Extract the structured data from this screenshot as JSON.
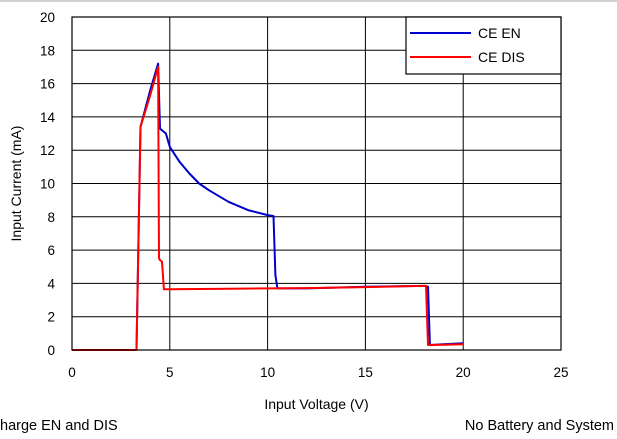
{
  "chart_data": {
    "type": "line",
    "xlabel": "Input Voltage (V)",
    "ylabel": "Input Current (mA)",
    "xlim": [
      0,
      25
    ],
    "ylim": [
      0,
      20
    ],
    "xticks": [
      0,
      5,
      10,
      15,
      20,
      25
    ],
    "yticks": [
      0,
      2,
      4,
      6,
      8,
      10,
      12,
      14,
      16,
      18,
      20
    ],
    "grid": true,
    "legend_position": "top-right",
    "series": [
      {
        "name": "CE EN",
        "color": "#0000cc",
        "x": [
          0,
          3.3,
          3.5,
          4.0,
          4.4,
          4.5,
          4.8,
          5.0,
          5.5,
          6.0,
          6.5,
          7.0,
          8.0,
          9.0,
          10.0,
          10.3,
          10.4,
          10.5,
          12.0,
          15.0,
          18.0,
          18.2,
          18.3,
          19.0,
          20.0
        ],
        "y": [
          0,
          0,
          13.4,
          15.6,
          17.2,
          13.3,
          13.0,
          12.2,
          11.3,
          10.6,
          10.0,
          9.6,
          8.9,
          8.4,
          8.1,
          8.05,
          4.5,
          3.7,
          3.7,
          3.8,
          3.85,
          3.8,
          0.3,
          0.35,
          0.4
        ]
      },
      {
        "name": "CE DIS",
        "color": "#ff0000",
        "x": [
          0,
          3.3,
          3.5,
          4.0,
          4.4,
          4.45,
          4.5,
          4.6,
          4.7,
          5.0,
          8.0,
          10.0,
          10.3,
          12.0,
          15.0,
          18.0,
          18.1,
          18.2,
          19.0,
          20.0
        ],
        "y": [
          0,
          0,
          13.4,
          15.3,
          17.0,
          5.5,
          5.4,
          5.3,
          3.65,
          3.65,
          3.68,
          3.7,
          3.7,
          3.72,
          3.78,
          3.85,
          3.85,
          0.3,
          0.32,
          0.35
        ]
      }
    ]
  },
  "captions": {
    "left": "harge EN and DIS",
    "right": "No Battery and System"
  }
}
